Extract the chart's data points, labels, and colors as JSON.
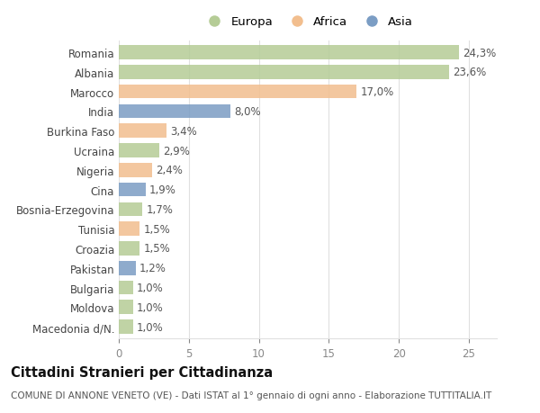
{
  "countries": [
    "Romania",
    "Albania",
    "Marocco",
    "India",
    "Burkina Faso",
    "Ucraina",
    "Nigeria",
    "Cina",
    "Bosnia-Erzegovina",
    "Tunisia",
    "Croazia",
    "Pakistan",
    "Bulgaria",
    "Moldova",
    "Macedonia d/N."
  ],
  "values": [
    24.3,
    23.6,
    17.0,
    8.0,
    3.4,
    2.9,
    2.4,
    1.9,
    1.7,
    1.5,
    1.5,
    1.2,
    1.0,
    1.0,
    1.0
  ],
  "labels": [
    "24,3%",
    "23,6%",
    "17,0%",
    "8,0%",
    "3,4%",
    "2,9%",
    "2,4%",
    "1,9%",
    "1,7%",
    "1,5%",
    "1,5%",
    "1,2%",
    "1,0%",
    "1,0%",
    "1,0%"
  ],
  "continents": [
    "Europa",
    "Europa",
    "Africa",
    "Asia",
    "Africa",
    "Europa",
    "Africa",
    "Asia",
    "Europa",
    "Africa",
    "Europa",
    "Asia",
    "Europa",
    "Europa",
    "Europa"
  ],
  "colors": {
    "Europa": "#b5cc96",
    "Africa": "#f2be8e",
    "Asia": "#7b9dc4"
  },
  "legend_labels": [
    "Europa",
    "Africa",
    "Asia"
  ],
  "legend_colors": [
    "#b5cc96",
    "#f2be8e",
    "#7b9dc4"
  ],
  "xlim": [
    0,
    27
  ],
  "xticks": [
    0,
    5,
    10,
    15,
    20,
    25
  ],
  "title": "Cittadini Stranieri per Cittadinanza",
  "subtitle": "COMUNE DI ANNONE VENETO (VE) - Dati ISTAT al 1° gennaio di ogni anno - Elaborazione TUTTITALIA.IT",
  "bar_height": 0.72,
  "background_color": "#ffffff",
  "grid_color": "#e0e0e0",
  "label_fontsize": 8.5,
  "tick_fontsize": 8.5,
  "title_fontsize": 10.5,
  "subtitle_fontsize": 7.5
}
